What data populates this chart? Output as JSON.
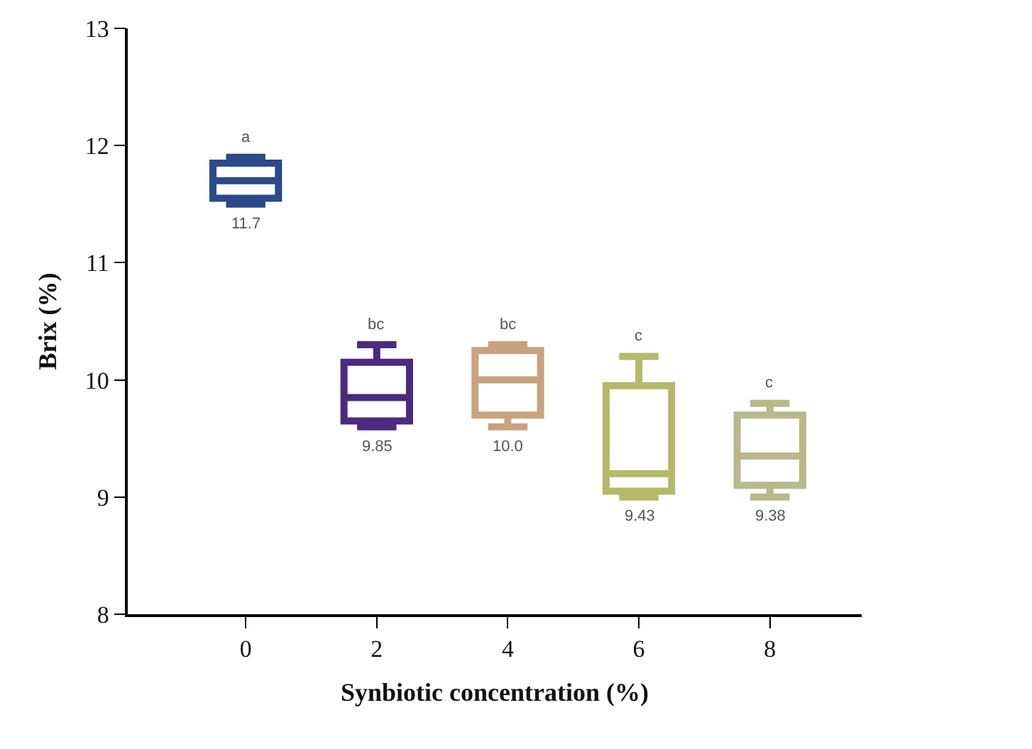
{
  "chart_data": {
    "type": "box",
    "xlabel": "Synbiotic concentration (%)",
    "ylabel": "Brix (%)",
    "categories": [
      "0",
      "2",
      "4",
      "6",
      "8"
    ],
    "boxes": [
      {
        "low": 11.5,
        "q1": 11.55,
        "median": 11.7,
        "q3": 11.85,
        "high": 11.9
      },
      {
        "low": 9.6,
        "q1": 9.65,
        "median": 9.85,
        "q3": 10.15,
        "high": 10.3
      },
      {
        "low": 9.6,
        "q1": 9.7,
        "median": 10.0,
        "q3": 10.25,
        "high": 10.3
      },
      {
        "low": 9.0,
        "q1": 9.05,
        "median": 9.2,
        "q3": 9.95,
        "high": 10.2
      },
      {
        "low": 9.0,
        "q1": 9.1,
        "median": 9.35,
        "q3": 9.7,
        "high": 9.8
      }
    ],
    "colors": [
      "#2b4a8a",
      "#4b2a7f",
      "#c9a27e",
      "#b5b96a",
      "#b8b88a"
    ],
    "ylim": [
      8,
      13
    ],
    "yticks": [
      8,
      9,
      10,
      11,
      12,
      13
    ],
    "annotations": [
      "a",
      "11.7",
      "bc",
      "9.85",
      "bc",
      "10.0",
      "c",
      "9.43",
      "c",
      "9.38"
    ]
  }
}
